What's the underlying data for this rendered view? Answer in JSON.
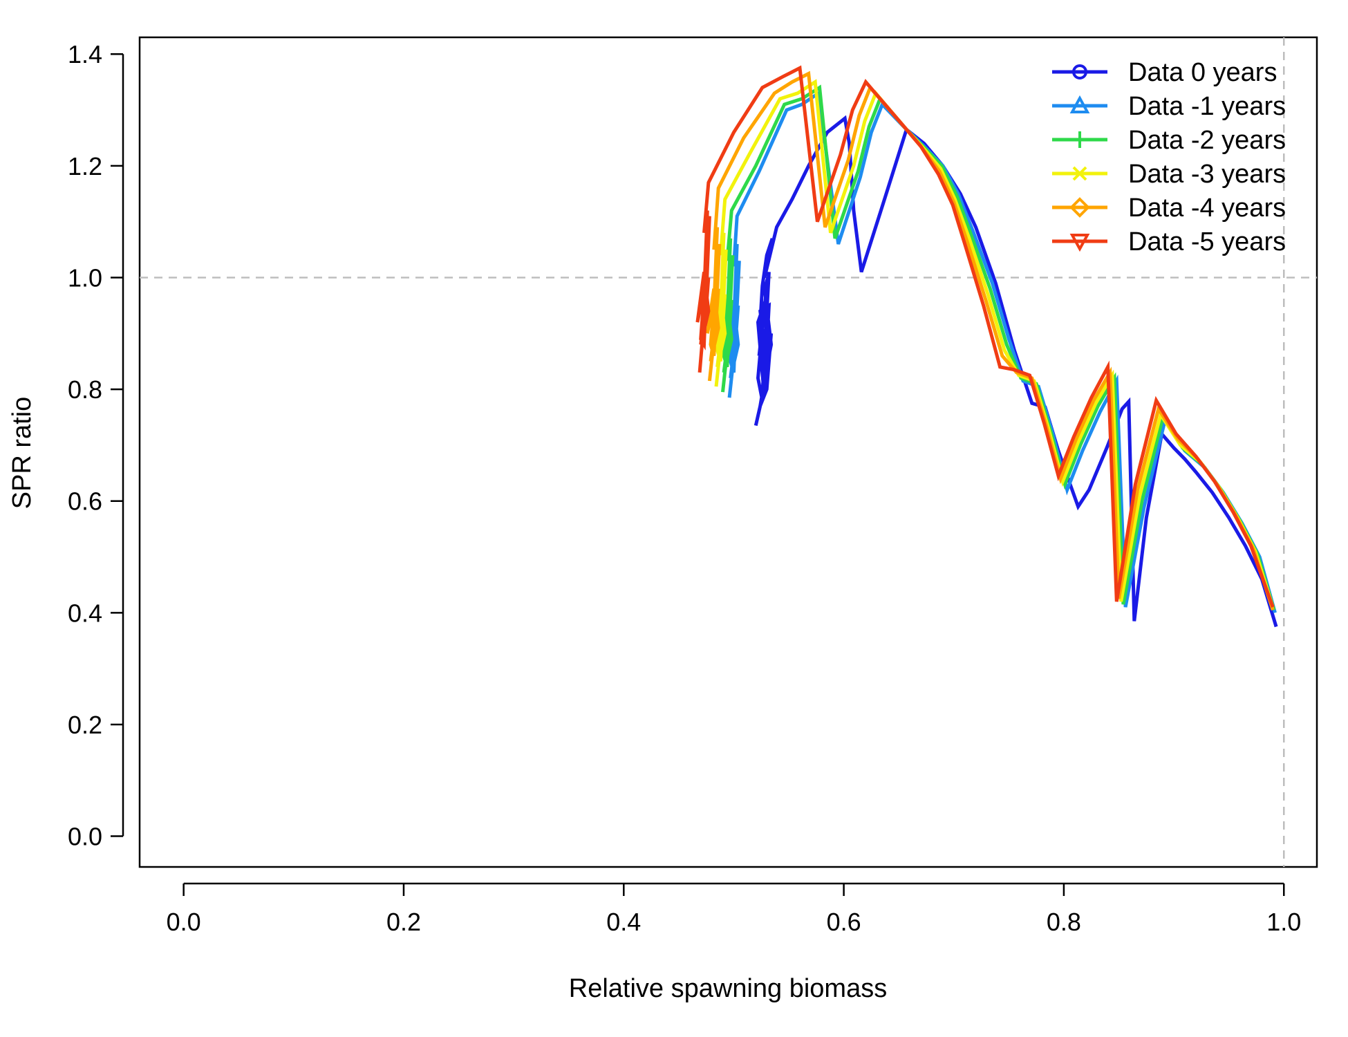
{
  "chart_data": {
    "type": "line",
    "title": "",
    "xlabel": "Relative spawning biomass",
    "ylabel": "SPR ratio",
    "xlim": [
      -0.04,
      1.03
    ],
    "ylim": [
      -0.055,
      1.43
    ],
    "xticks": [
      0.0,
      0.2,
      0.4,
      0.6,
      0.8,
      1.0
    ],
    "xtick_labels": [
      "0.0",
      "0.2",
      "0.4",
      "0.6",
      "0.8",
      "1.0"
    ],
    "yticks": [
      0.0,
      0.2,
      0.4,
      0.6,
      0.8,
      1.0,
      1.2,
      1.4
    ],
    "ytick_labels": [
      "0.0",
      "0.2",
      "0.4",
      "0.6",
      "0.8",
      "1.0",
      "1.2",
      "1.4"
    ],
    "reference_lines": {
      "horizontal": 1.0,
      "vertical": 1.0,
      "style": "dashed",
      "color": "#bdbdbd"
    },
    "grid": false,
    "legend_position": "top-right",
    "series": [
      {
        "name": "Data 0 years",
        "color": "#1a1ae6",
        "marker": "circle",
        "x": [
          0.52,
          0.524,
          0.527,
          0.522,
          0.529,
          0.532,
          0.526,
          0.53,
          0.534,
          0.528,
          0.531,
          0.523,
          0.527,
          0.522,
          0.526,
          0.53,
          0.534,
          0.529,
          0.524,
          0.532,
          0.528,
          0.524,
          0.526,
          0.53,
          0.535,
          0.528,
          0.539,
          0.553,
          0.568,
          0.585,
          0.601,
          0.605,
          0.609,
          0.616,
          0.637,
          0.657,
          0.673,
          0.69,
          0.706,
          0.72,
          0.738,
          0.755,
          0.771,
          0.783,
          0.795,
          0.803,
          0.813,
          0.823,
          0.839,
          0.853,
          0.859,
          0.864,
          0.875,
          0.889,
          0.9,
          0.91,
          0.92,
          0.935,
          0.95,
          0.965,
          0.98,
          0.993
        ],
        "y": [
          0.735,
          0.77,
          0.805,
          0.92,
          0.96,
          1.01,
          0.79,
          0.84,
          0.88,
          0.98,
          1.0,
          0.86,
          0.93,
          0.82,
          0.78,
          0.8,
          0.9,
          0.86,
          0.94,
          0.95,
          0.8,
          0.92,
          0.985,
          1.04,
          1.07,
          1.0,
          1.09,
          1.14,
          1.2,
          1.26,
          1.285,
          1.24,
          1.12,
          1.01,
          1.14,
          1.265,
          1.24,
          1.2,
          1.15,
          1.09,
          0.99,
          0.87,
          0.775,
          0.768,
          0.69,
          0.645,
          0.59,
          0.62,
          0.695,
          0.765,
          0.778,
          0.385,
          0.57,
          0.72,
          0.695,
          0.675,
          0.652,
          0.615,
          0.57,
          0.52,
          0.46,
          0.375
        ]
      },
      {
        "name": "Data -1 years",
        "color": "#1e8cf0",
        "marker": "triangle",
        "x": [
          0.496,
          0.499,
          0.502,
          0.497,
          0.504,
          0.5,
          0.494,
          0.499,
          0.503,
          0.497,
          0.5,
          0.503,
          0.5,
          0.505,
          0.501,
          0.504,
          0.499,
          0.503,
          0.5,
          0.503,
          0.523,
          0.548,
          0.562,
          0.577,
          0.595,
          0.615,
          0.625,
          0.635,
          0.657,
          0.673,
          0.69,
          0.704,
          0.718,
          0.735,
          0.75,
          0.763,
          0.777,
          0.79,
          0.803,
          0.817,
          0.833,
          0.848,
          0.856,
          0.873,
          0.892,
          0.91,
          0.928,
          0.945,
          0.962,
          0.978,
          0.992
        ],
        "y": [
          0.785,
          0.84,
          0.9,
          0.82,
          0.88,
          0.95,
          0.87,
          0.92,
          0.99,
          0.85,
          0.83,
          0.98,
          0.92,
          1.03,
          0.87,
          0.95,
          0.87,
          1.06,
          1.02,
          1.11,
          1.19,
          1.3,
          1.31,
          1.33,
          1.06,
          1.18,
          1.26,
          1.31,
          1.265,
          1.235,
          1.2,
          1.15,
          1.08,
          0.99,
          0.89,
          0.815,
          0.805,
          0.72,
          0.62,
          0.69,
          0.76,
          0.815,
          0.41,
          0.59,
          0.745,
          0.69,
          0.66,
          0.615,
          0.56,
          0.5,
          0.4
        ]
      },
      {
        "name": "Data -2 years",
        "color": "#2ed94a",
        "marker": "plus",
        "x": [
          0.49,
          0.493,
          0.496,
          0.491,
          0.498,
          0.494,
          0.488,
          0.493,
          0.497,
          0.491,
          0.494,
          0.497,
          0.494,
          0.499,
          0.495,
          0.498,
          0.493,
          0.497,
          0.494,
          0.498,
          0.52,
          0.546,
          0.562,
          0.578,
          0.592,
          0.613,
          0.623,
          0.633,
          0.657,
          0.672,
          0.689,
          0.703,
          0.716,
          0.733,
          0.748,
          0.761,
          0.775,
          0.788,
          0.801,
          0.815,
          0.831,
          0.846,
          0.854,
          0.871,
          0.89,
          0.908,
          0.926,
          0.943,
          0.96,
          0.976,
          0.991
        ],
        "y": [
          0.795,
          0.85,
          0.91,
          0.83,
          0.89,
          0.96,
          0.88,
          0.93,
          1.0,
          0.86,
          0.84,
          0.99,
          0.93,
          1.04,
          0.88,
          0.96,
          0.88,
          1.07,
          1.03,
          1.12,
          1.2,
          1.31,
          1.32,
          1.34,
          1.07,
          1.19,
          1.27,
          1.32,
          1.265,
          1.235,
          1.2,
          1.145,
          1.075,
          0.98,
          0.88,
          0.82,
          0.81,
          0.725,
          0.63,
          0.7,
          0.77,
          0.82,
          0.415,
          0.6,
          0.75,
          0.695,
          0.665,
          0.62,
          0.565,
          0.505,
          0.405
        ]
      },
      {
        "name": "Data -3 years",
        "color": "#f2f20d",
        "marker": "x",
        "x": [
          0.484,
          0.487,
          0.49,
          0.485,
          0.492,
          0.488,
          0.482,
          0.487,
          0.491,
          0.485,
          0.488,
          0.491,
          0.488,
          0.493,
          0.489,
          0.492,
          0.487,
          0.491,
          0.488,
          0.492,
          0.514,
          0.542,
          0.558,
          0.574,
          0.588,
          0.609,
          0.619,
          0.629,
          0.657,
          0.671,
          0.688,
          0.701,
          0.714,
          0.731,
          0.746,
          0.759,
          0.773,
          0.786,
          0.799,
          0.813,
          0.829,
          0.844,
          0.852,
          0.869,
          0.888,
          0.906,
          0.924,
          0.941,
          0.958,
          0.974,
          0.99
        ],
        "y": [
          0.805,
          0.86,
          0.92,
          0.84,
          0.9,
          0.97,
          0.89,
          0.94,
          1.01,
          0.87,
          0.85,
          1.0,
          0.94,
          1.05,
          0.89,
          0.97,
          0.89,
          1.08,
          1.04,
          1.14,
          1.22,
          1.32,
          1.33,
          1.35,
          1.08,
          1.2,
          1.28,
          1.33,
          1.265,
          1.235,
          1.195,
          1.14,
          1.07,
          0.97,
          0.87,
          0.825,
          0.815,
          0.73,
          0.635,
          0.705,
          0.775,
          0.825,
          0.42,
          0.61,
          0.755,
          0.7,
          0.67,
          0.625,
          0.57,
          0.51,
          0.41
        ]
      },
      {
        "name": "Data -4 years",
        "color": "#ffa500",
        "marker": "diamond",
        "x": [
          0.478,
          0.481,
          0.484,
          0.479,
          0.486,
          0.482,
          0.476,
          0.481,
          0.485,
          0.479,
          0.482,
          0.485,
          0.482,
          0.487,
          0.483,
          0.486,
          0.481,
          0.485,
          0.482,
          0.486,
          0.509,
          0.537,
          0.553,
          0.568,
          0.583,
          0.604,
          0.614,
          0.624,
          0.657,
          0.67,
          0.687,
          0.7,
          0.712,
          0.729,
          0.744,
          0.757,
          0.771,
          0.784,
          0.797,
          0.811,
          0.827,
          0.842,
          0.85,
          0.867,
          0.886,
          0.904,
          0.922,
          0.939,
          0.956,
          0.972,
          0.99
        ],
        "y": [
          0.815,
          0.87,
          0.93,
          0.85,
          0.91,
          0.98,
          0.9,
          0.95,
          1.02,
          0.88,
          0.86,
          1.01,
          0.95,
          1.06,
          0.9,
          0.98,
          0.9,
          1.09,
          1.05,
          1.16,
          1.25,
          1.33,
          1.35,
          1.365,
          1.09,
          1.21,
          1.29,
          1.34,
          1.265,
          1.235,
          1.19,
          1.135,
          1.065,
          0.96,
          0.86,
          0.83,
          0.82,
          0.735,
          0.64,
          0.71,
          0.78,
          0.83,
          0.425,
          0.62,
          0.765,
          0.71,
          0.675,
          0.63,
          0.575,
          0.515,
          0.405
        ]
      },
      {
        "name": "Data -5 years",
        "color": "#f03c14",
        "marker": "inverted-triangle",
        "x": [
          0.469,
          0.472,
          0.475,
          0.47,
          0.477,
          0.473,
          0.467,
          0.472,
          0.476,
          0.47,
          0.473,
          0.476,
          0.473,
          0.478,
          0.474,
          0.477,
          0.472,
          0.476,
          0.473,
          0.477,
          0.5,
          0.526,
          0.545,
          0.56,
          0.576,
          0.597,
          0.608,
          0.62,
          0.657,
          0.67,
          0.686,
          0.699,
          0.71,
          0.727,
          0.742,
          0.755,
          0.769,
          0.782,
          0.795,
          0.809,
          0.825,
          0.84,
          0.848,
          0.865,
          0.884,
          0.902,
          0.92,
          0.937,
          0.954,
          0.97,
          0.99
        ],
        "y": [
          0.83,
          0.9,
          0.96,
          0.88,
          0.94,
          1.01,
          0.92,
          0.97,
          1.05,
          0.89,
          0.88,
          1.03,
          0.97,
          1.11,
          0.92,
          1.0,
          0.92,
          1.12,
          1.08,
          1.17,
          1.26,
          1.34,
          1.36,
          1.375,
          1.1,
          1.22,
          1.3,
          1.35,
          1.265,
          1.235,
          1.185,
          1.13,
          1.06,
          0.95,
          0.84,
          0.835,
          0.825,
          0.74,
          0.645,
          0.715,
          0.785,
          0.84,
          0.42,
          0.63,
          0.78,
          0.72,
          0.68,
          0.635,
          0.58,
          0.52,
          0.41
        ]
      }
    ]
  }
}
